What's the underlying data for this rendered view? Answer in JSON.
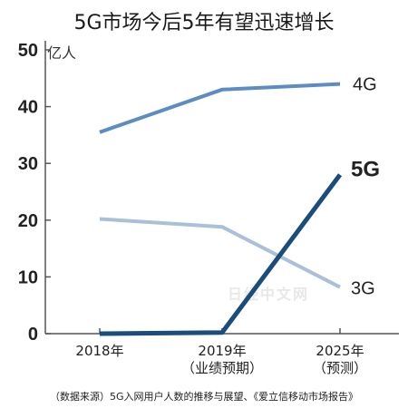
{
  "title": "5G市场今后5年有望迅速增长",
  "source": "（数据来源）5G入网用户人数的推移与展望、《爱立信移动市场报告》",
  "watermark": "日经中文网",
  "chart_data": {
    "type": "line",
    "title": "5G市场今后5年有望迅速增长",
    "ylabel": "亿人",
    "ylim": [
      0,
      50
    ],
    "yticks": [
      0,
      10,
      20,
      30,
      40,
      50
    ],
    "categories": [
      [
        "2018年"
      ],
      [
        "2019年",
        "（业绩预期）"
      ],
      [
        "2025年",
        "（预测）"
      ]
    ],
    "grid": false,
    "series": [
      {
        "name": "4G",
        "values": [
          35.5,
          43,
          44
        ],
        "color": "#5b8dc2",
        "width": 4
      },
      {
        "name": "3G",
        "values": [
          20.2,
          18.8,
          8.2
        ],
        "color": "#a9c0d8",
        "width": 4
      },
      {
        "name": "5G",
        "values": [
          0,
          0.2,
          28
        ],
        "color": "#1a4d7c",
        "width": 5
      }
    ]
  }
}
